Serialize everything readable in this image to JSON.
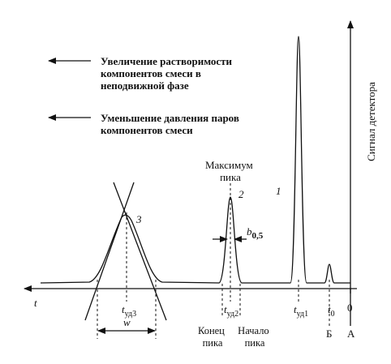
{
  "notes": [
    {
      "lines": [
        "Увеличение растворимости",
        "компонентов смеси в",
        "неподвижной фазе"
      ]
    },
    {
      "lines": [
        "Уменьшение давления паров",
        "компонентов смеси"
      ]
    }
  ],
  "y_axis_label": "Сигнал детектора",
  "x_axis_label": "t",
  "peak_max": {
    "lines": [
      "Максимум",
      "пика"
    ]
  },
  "peak_numbers": [
    "1",
    "2",
    "3"
  ],
  "half_width": {
    "main": "b",
    "sub": "0,5"
  },
  "width": "w",
  "times": [
    {
      "main": "t",
      "sub": "уд3"
    },
    {
      "main": "t",
      "sub": "уд2"
    },
    {
      "main": "t",
      "sub": "уд1"
    },
    {
      "main": "t",
      "sub": "0"
    },
    {
      "main": "0"
    }
  ],
  "points": [
    "Б",
    "А"
  ],
  "peak_end": {
    "lines": [
      "Конец",
      "пика"
    ]
  },
  "peak_start": {
    "lines": [
      "Начало",
      "пика"
    ]
  }
}
